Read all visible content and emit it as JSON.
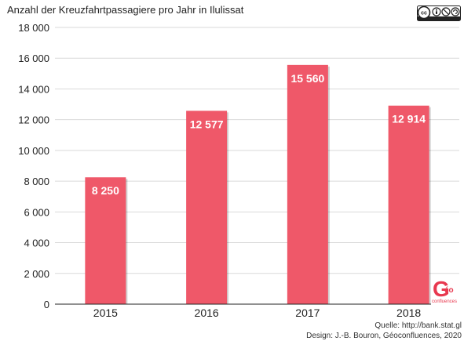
{
  "chart_data": {
    "type": "bar",
    "title": "Anzahl der Kreuzfahrtpassagiere pro Jahr in Ilulissat",
    "categories": [
      "2015",
      "2016",
      "2017",
      "2018"
    ],
    "values": [
      8250,
      12577,
      15560,
      12914
    ],
    "value_labels": [
      "8 250",
      "12 577",
      "15 560",
      "12 914"
    ],
    "ylim": [
      0,
      18000
    ],
    "yticks": [
      0,
      2000,
      4000,
      6000,
      8000,
      10000,
      12000,
      14000,
      16000,
      18000
    ],
    "ytick_labels": [
      "0",
      "2 000",
      "4 000",
      "6 000",
      "8 000",
      "10 000",
      "12 000",
      "14 000",
      "16 000",
      "18 000"
    ],
    "grid": true,
    "bar_color": "#ef5869",
    "value_label_color": "#ffffff"
  },
  "footer": {
    "source": "Quelle: http://bank.stat.gl",
    "credit": "Design: J.-B. Bouron, Géoconfluences, 2020"
  },
  "license_badge": {
    "text": "cc",
    "icon": "creative-commons-by-nc-sa-icon"
  },
  "logo": {
    "letter": "G",
    "text": "éo",
    "subtext": "confluences",
    "icon": "geoconfluences-logo",
    "color": "#e8384f"
  }
}
